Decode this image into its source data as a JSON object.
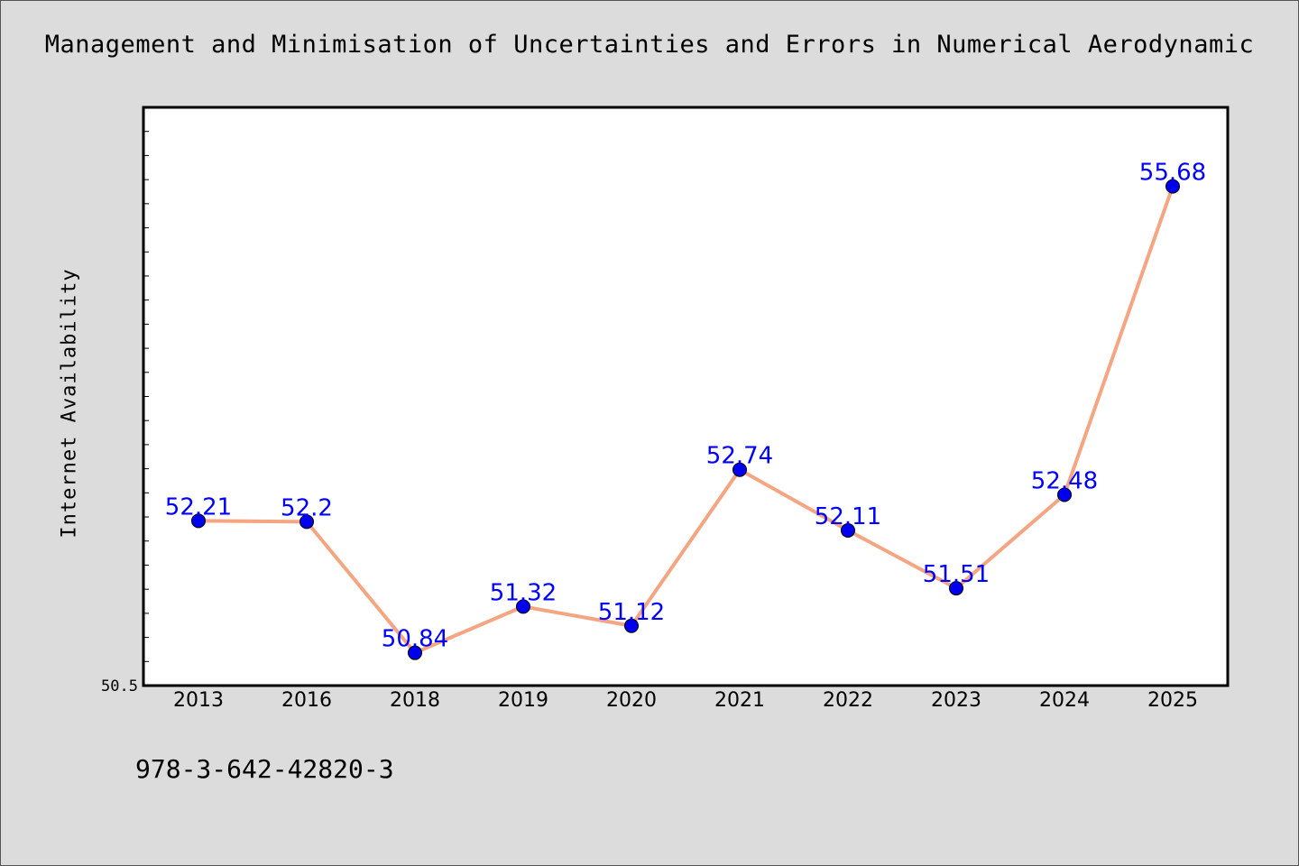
{
  "chart_data": {
    "type": "line",
    "title": "Management and Minimisation of Uncertainties and Errors in Numerical Aerodynamic",
    "xlabel": "",
    "ylabel": "Internet Availability",
    "categories": [
      "2013",
      "2016",
      "2018",
      "2019",
      "2020",
      "2021",
      "2022",
      "2023",
      "2024",
      "2025"
    ],
    "values": [
      52.21,
      52.2,
      50.84,
      51.32,
      51.12,
      52.74,
      52.11,
      51.51,
      52.48,
      55.68
    ],
    "data_labels": [
      "52.21",
      "52.2",
      "50.84",
      "51.32",
      "51.12",
      "52.74",
      "52.11",
      "51.51",
      "52.48",
      "55.68"
    ],
    "y_tick_label": "50.5",
    "ylim": [
      50.5,
      56.5
    ],
    "grid": false,
    "line_color": "#f4a582",
    "marker_color": "#0000ee",
    "label_color": "#0000ff"
  },
  "footnote": "978-3-642-42820-3"
}
